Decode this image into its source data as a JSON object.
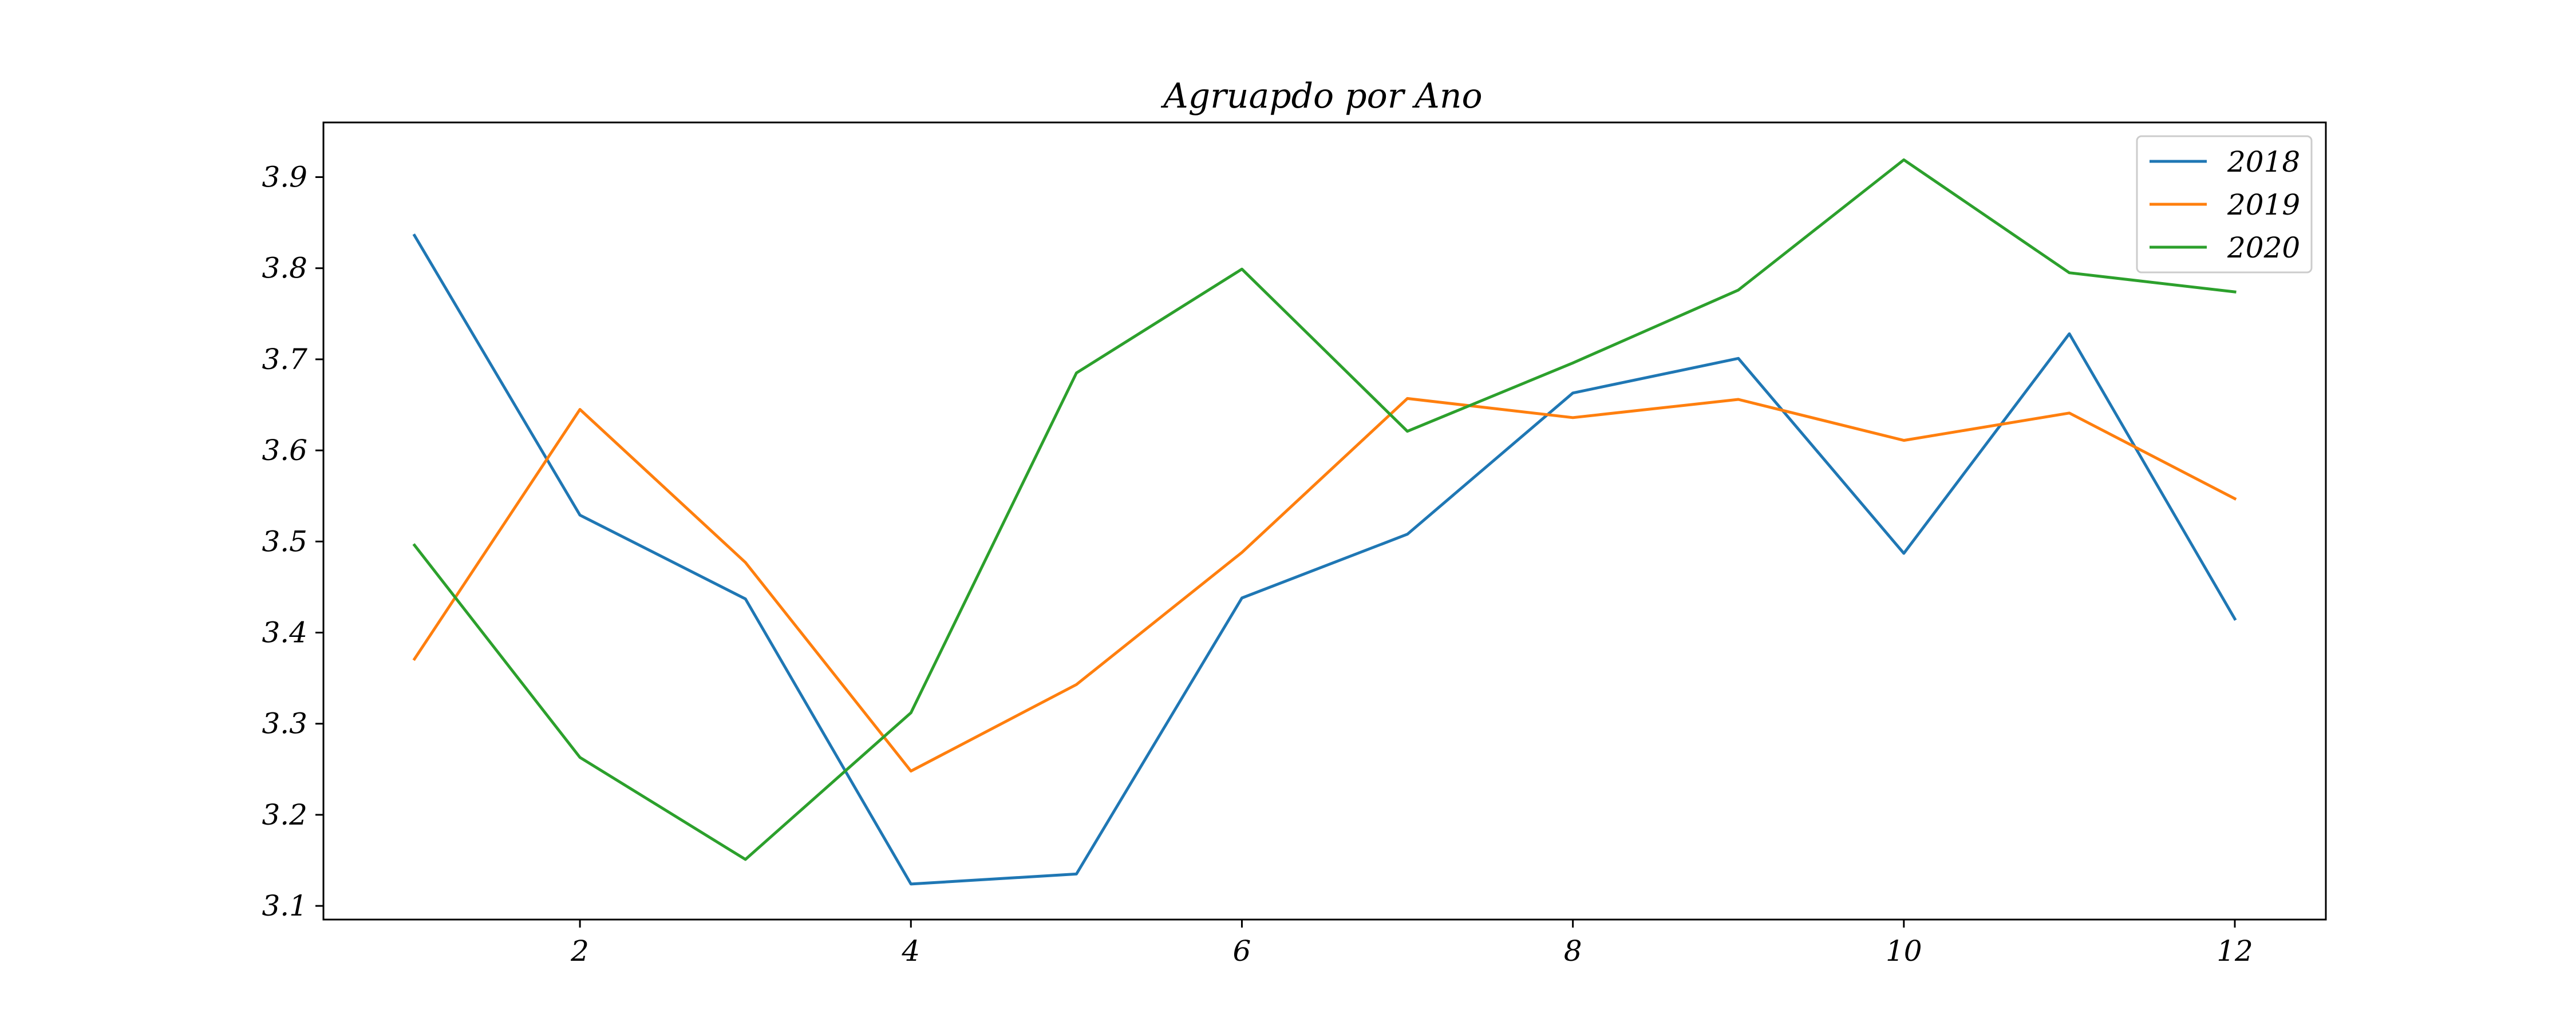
{
  "chart_data": {
    "type": "line",
    "title": "Agruapdo por Ano",
    "xlabel": "",
    "ylabel": "",
    "x": [
      1,
      2,
      3,
      4,
      5,
      6,
      7,
      8,
      9,
      10,
      11,
      12
    ],
    "xlim": [
      0.45,
      12.55
    ],
    "ylim": [
      3.085,
      3.96
    ],
    "xticks": [
      2,
      4,
      6,
      8,
      10,
      12
    ],
    "xtick_labels": [
      "2",
      "4",
      "6",
      "8",
      "10",
      "12"
    ],
    "yticks": [
      3.1,
      3.2,
      3.3,
      3.4,
      3.5,
      3.6,
      3.7,
      3.8,
      3.9
    ],
    "ytick_labels": [
      "3.1",
      "3.2",
      "3.3",
      "3.4",
      "3.5",
      "3.6",
      "3.7",
      "3.8",
      "3.9"
    ],
    "grid": false,
    "legend_position": "top-right",
    "series": [
      {
        "name": "2018",
        "color": "#1f77b4",
        "values": [
          3.836,
          3.529,
          3.437,
          3.124,
          3.135,
          3.438,
          3.508,
          3.663,
          3.701,
          3.487,
          3.728,
          3.415
        ]
      },
      {
        "name": "2019",
        "color": "#ff7f0e",
        "values": [
          3.371,
          3.645,
          3.477,
          3.248,
          3.343,
          3.488,
          3.657,
          3.636,
          3.656,
          3.611,
          3.641,
          3.547
        ]
      },
      {
        "name": "2020",
        "color": "#2ca02c",
        "values": [
          3.496,
          3.263,
          3.151,
          3.312,
          3.685,
          3.799,
          3.621,
          3.696,
          3.776,
          3.919,
          3.795,
          3.774
        ]
      }
    ]
  }
}
